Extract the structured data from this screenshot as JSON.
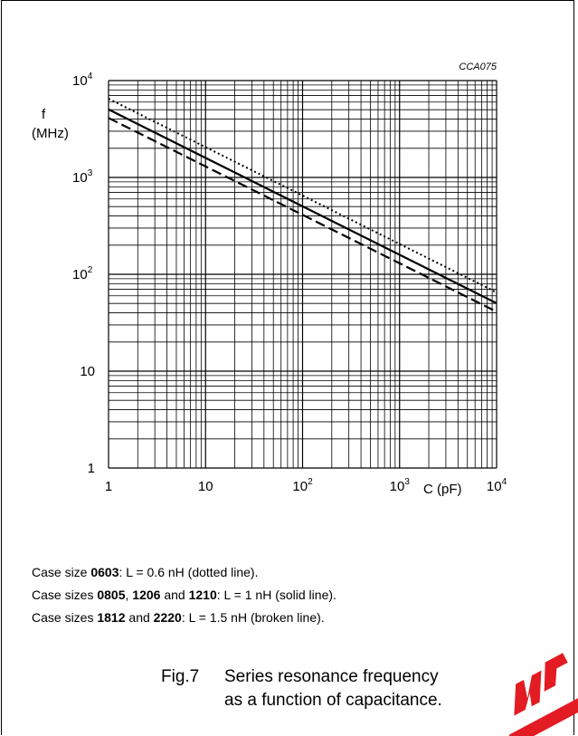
{
  "chart_data": {
    "type": "line",
    "code": "CCA075",
    "ylabel_symbol": "f",
    "ylabel_unit": "(MHz)",
    "xlabel": "C  (pF)",
    "x_scale": "log",
    "y_scale": "log",
    "xlim": [
      1,
      10000
    ],
    "ylim": [
      1,
      10000
    ],
    "grid": true,
    "x_ticks": [
      {
        "base": "1",
        "exp": ""
      },
      {
        "base": "10",
        "exp": ""
      },
      {
        "base": "10",
        "exp": "2"
      },
      {
        "base": "10",
        "exp": "3"
      },
      {
        "base": "10",
        "exp": "4"
      }
    ],
    "y_ticks": [
      {
        "base": "1",
        "exp": ""
      },
      {
        "base": "10",
        "exp": ""
      },
      {
        "base": "10",
        "exp": "2"
      },
      {
        "base": "10",
        "exp": "3"
      },
      {
        "base": "10",
        "exp": "4"
      }
    ],
    "series": [
      {
        "style": "dotted",
        "x": [
          1,
          10000
        ],
        "y": [
          6500,
          65
        ]
      },
      {
        "style": "solid",
        "x": [
          1,
          10000
        ],
        "y": [
          5033,
          50.3
        ]
      },
      {
        "style": "dashed",
        "x": [
          1,
          10000
        ],
        "y": [
          4110,
          41.1
        ]
      }
    ]
  },
  "notes": [
    {
      "prefix": "Case size ",
      "b1": "0603",
      "mid1": "",
      "b2": "",
      "mid2": "",
      "b3": "",
      "suffix": ": L = 0.6 nH (dotted line)."
    },
    {
      "prefix": "Case sizes ",
      "b1": "0805",
      "mid1": ", ",
      "b2": "1206",
      "mid2": " and ",
      "b3": "1210",
      "suffix": ": L = 1 nH (solid line)."
    },
    {
      "prefix": "Case sizes ",
      "b1": "1812",
      "mid1": " and ",
      "b2": "2220",
      "mid2": "",
      "b3": "",
      "suffix": ": L = 1.5 nH (broken line)."
    }
  ],
  "caption": {
    "number": "Fig.7",
    "line1": "Series resonance frequency",
    "line2": "as a function of capacitance."
  }
}
